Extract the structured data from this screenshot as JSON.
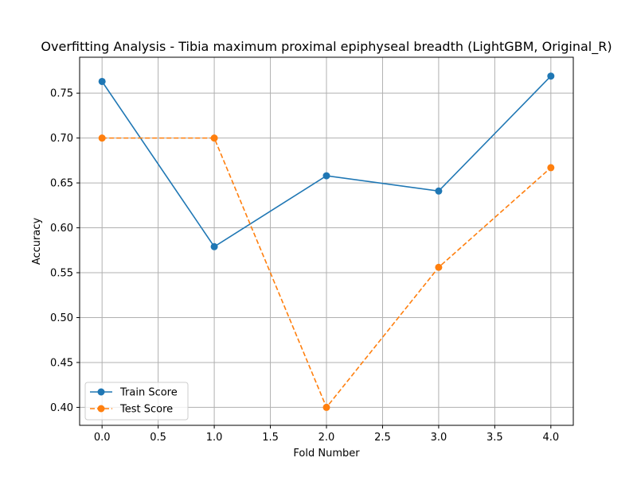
{
  "chart_data": {
    "type": "line",
    "title": "Overfitting Analysis - Tibia maximum proximal epiphyseal breadth (LightGBM, Original_R)",
    "xlabel": "Fold Number",
    "ylabel": "Accuracy",
    "xlim": [
      -0.2,
      4.2
    ],
    "ylim": [
      0.38,
      0.79
    ],
    "xticks": [
      0.0,
      0.5,
      1.0,
      1.5,
      2.0,
      2.5,
      3.0,
      3.5,
      4.0
    ],
    "xtick_labels": [
      "0.0",
      "0.5",
      "1.0",
      "1.5",
      "2.0",
      "2.5",
      "3.0",
      "3.5",
      "4.0"
    ],
    "yticks": [
      0.4,
      0.45,
      0.5,
      0.55,
      0.6,
      0.65,
      0.7,
      0.75
    ],
    "ytick_labels": [
      "0.40",
      "0.45",
      "0.50",
      "0.55",
      "0.60",
      "0.65",
      "0.70",
      "0.75"
    ],
    "grid": true,
    "legend_position": "lower-left",
    "x": [
      0,
      1,
      2,
      3,
      4
    ],
    "series": [
      {
        "name": "Train Score",
        "values": [
          0.763,
          0.579,
          0.658,
          0.641,
          0.769
        ],
        "color": "#1f77b4",
        "linestyle": "solid",
        "marker": "circle"
      },
      {
        "name": "Test Score",
        "values": [
          0.7,
          0.7,
          0.4,
          0.556,
          0.667
        ],
        "color": "#ff7f0e",
        "linestyle": "dashed",
        "marker": "circle"
      }
    ]
  }
}
